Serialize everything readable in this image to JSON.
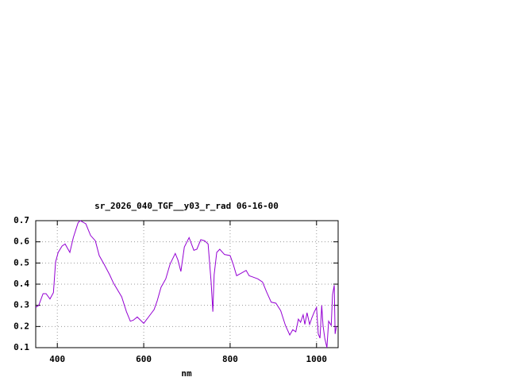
{
  "chart_data": {
    "type": "line",
    "title": "sr_2026_040_TGF__y03_r_rad 06-16-00",
    "x_label": "nm",
    "xlim": [
      350,
      1050
    ],
    "xticks": [
      400,
      600,
      800,
      1000
    ],
    "ylim": [
      0.1,
      0.7
    ],
    "yticks": [
      0.1,
      0.2,
      0.3,
      0.4,
      0.5,
      0.6,
      0.7
    ],
    "grid": true,
    "x": [
      350,
      357,
      367,
      374,
      383,
      391,
      396,
      402,
      411,
      418,
      429,
      437,
      448,
      453,
      466,
      477,
      488,
      497,
      508,
      521,
      530,
      549,
      560,
      569,
      576,
      585,
      600,
      613,
      624,
      631,
      640,
      651,
      661,
      673,
      679,
      686,
      694,
      705,
      716,
      723,
      732,
      741,
      749,
      756,
      760,
      763,
      769,
      776,
      787,
      800,
      807,
      815,
      824,
      837,
      844,
      851,
      864,
      875,
      884,
      895,
      906,
      917,
      928,
      938,
      945,
      952,
      958,
      963,
      969,
      973,
      978,
      984,
      989,
      995,
      1000,
      1004,
      1008,
      1012,
      1015,
      1019,
      1024,
      1028,
      1034,
      1037,
      1041,
      1043,
      1046
    ],
    "series": [
      {
        "name": "sr_2026_040_TGF__y03_r_rad",
        "color": "#9400d3",
        "values": [
          0.29,
          0.3,
          0.355,
          0.355,
          0.33,
          0.36,
          0.505,
          0.55,
          0.58,
          0.59,
          0.55,
          0.62,
          0.69,
          0.7,
          0.685,
          0.63,
          0.605,
          0.535,
          0.495,
          0.445,
          0.405,
          0.34,
          0.27,
          0.225,
          0.23,
          0.245,
          0.215,
          0.25,
          0.28,
          0.32,
          0.385,
          0.425,
          0.495,
          0.545,
          0.515,
          0.46,
          0.575,
          0.62,
          0.56,
          0.565,
          0.61,
          0.605,
          0.59,
          0.41,
          0.27,
          0.445,
          0.55,
          0.565,
          0.54,
          0.535,
          0.495,
          0.44,
          0.45,
          0.465,
          0.44,
          0.435,
          0.425,
          0.41,
          0.365,
          0.315,
          0.31,
          0.275,
          0.205,
          0.16,
          0.185,
          0.175,
          0.235,
          0.22,
          0.255,
          0.21,
          0.265,
          0.21,
          0.24,
          0.27,
          0.29,
          0.165,
          0.145,
          0.3,
          0.205,
          0.145,
          0.1,
          0.225,
          0.205,
          0.35,
          0.395,
          0.165,
          0.2
        ]
      }
    ]
  }
}
